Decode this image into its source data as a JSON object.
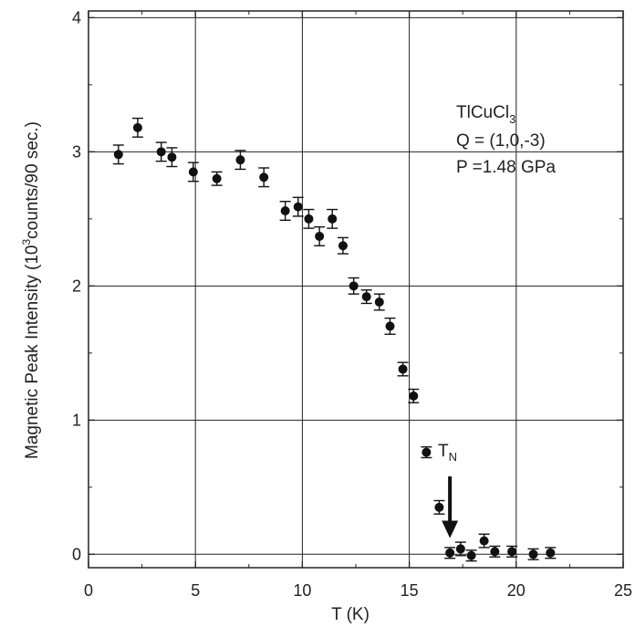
{
  "chart_data": {
    "type": "scatter",
    "xlabel": "T (K)",
    "ylabel": {
      "pre": "Magnetic Peak Intensity (10",
      "sup": "3",
      "post": "counts/90 sec.)"
    },
    "xlim": [
      0,
      25
    ],
    "ylim": [
      -0.1,
      4.05
    ],
    "xticks": [
      0,
      5,
      10,
      15,
      20,
      25
    ],
    "yticks": [
      0,
      1,
      2,
      3,
      4
    ],
    "grid": true,
    "annotation": {
      "compound": {
        "base": "TlCuCl",
        "sub": "3"
      },
      "q_vector": "Q = (1,0,-3)",
      "pressure": "P =1.48 GPa"
    },
    "transition": {
      "label_base": "T",
      "label_sub": "N",
      "x": 16.9
    },
    "series": [
      {
        "x": [
          1.4,
          2.3,
          3.4,
          3.9,
          4.9,
          6.0,
          7.1,
          8.2,
          9.2,
          9.8,
          10.3,
          10.8,
          11.4,
          11.9,
          12.4,
          13.0,
          13.6,
          14.1,
          14.7,
          15.2,
          15.8,
          16.4,
          16.9,
          17.4,
          17.9,
          18.5,
          19.0,
          19.8,
          20.8,
          21.6
        ],
        "y": [
          2.98,
          3.18,
          3.0,
          2.96,
          2.85,
          2.8,
          2.94,
          2.81,
          2.56,
          2.59,
          2.5,
          2.37,
          2.5,
          2.3,
          2.0,
          1.92,
          1.88,
          1.7,
          1.38,
          1.18,
          0.76,
          0.35,
          0.01,
          0.04,
          -0.01,
          0.1,
          0.02,
          0.02,
          0.0,
          0.01
        ],
        "err": [
          0.07,
          0.07,
          0.07,
          0.07,
          0.07,
          0.05,
          0.07,
          0.07,
          0.07,
          0.07,
          0.07,
          0.07,
          0.07,
          0.06,
          0.06,
          0.05,
          0.06,
          0.06,
          0.05,
          0.05,
          0.04,
          0.05,
          0.04,
          0.05,
          0.04,
          0.05,
          0.04,
          0.04,
          0.04,
          0.04
        ]
      }
    ]
  }
}
